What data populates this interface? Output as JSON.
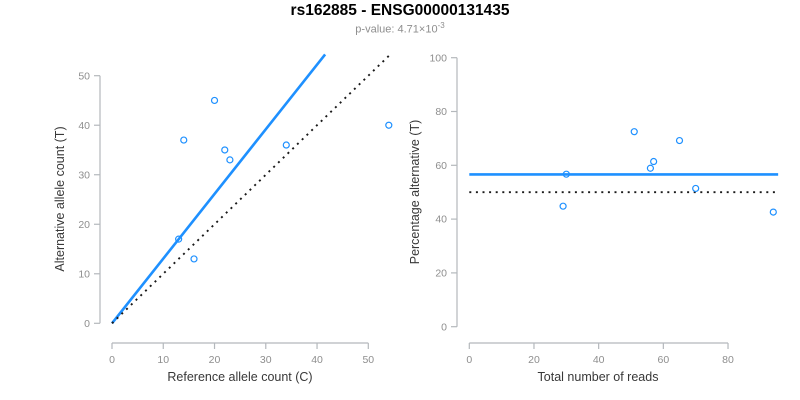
{
  "header": {
    "title": "rs162885 - ENSG00000131435",
    "p_value_prefix": "p-value: 4.71×10",
    "p_value_exponent": "-3"
  },
  "colors": {
    "accent_blue": "#1E90FF",
    "reference_black": "#1a1a1a",
    "axis_line": "#b4b8bc",
    "tick_label": "#8e8e8e",
    "axis_title": "#383838"
  },
  "chart_data": [
    {
      "type": "scatter",
      "panel": "allele-counts",
      "xlabel": "Reference allele count (C)",
      "ylabel": "Alternative allele count (T)",
      "xlim": [
        0,
        54.5
      ],
      "ylim": [
        0,
        54.3
      ],
      "xticks": [
        0,
        10,
        20,
        30,
        40,
        50
      ],
      "yticks": [
        0,
        10,
        20,
        30,
        40,
        50
      ],
      "grid": false,
      "points": [
        [
          14,
          37
        ],
        [
          20,
          45
        ],
        [
          22,
          35
        ],
        [
          23,
          33
        ],
        [
          34,
          36
        ],
        [
          54,
          40
        ],
        [
          13,
          17
        ],
        [
          16,
          13
        ]
      ],
      "lines": [
        {
          "name": "allelic-ratio-fit-line",
          "style": "solid",
          "color_key": "accent_blue",
          "slope": 1.306,
          "intercept": 0
        },
        {
          "name": "identity-line",
          "style": "dotted",
          "color_key": "reference_black",
          "slope": 1,
          "intercept": 0
        }
      ]
    },
    {
      "type": "scatter",
      "panel": "percentage-vs-reads",
      "xlabel": "Total number of reads",
      "ylabel": "Percentage alternative (T)",
      "xlim": [
        0,
        95.5
      ],
      "ylim": [
        0,
        100
      ],
      "xticks": [
        0,
        20,
        40,
        60,
        80
      ],
      "yticks": [
        0,
        20,
        40,
        60,
        80,
        100
      ],
      "grid": false,
      "points": [
        [
          51,
          72.5
        ],
        [
          65,
          69.2
        ],
        [
          57,
          61.4
        ],
        [
          56,
          58.9
        ],
        [
          30,
          56.7
        ],
        [
          70,
          51.4
        ],
        [
          29,
          44.8
        ],
        [
          94,
          42.6
        ]
      ],
      "lines": [
        {
          "name": "mean-percentage-line",
          "style": "solid",
          "color_key": "accent_blue",
          "hline": 56.6
        },
        {
          "name": "fifty-percent-line",
          "style": "dotted",
          "color_key": "reference_black",
          "hline": 50
        }
      ]
    }
  ]
}
